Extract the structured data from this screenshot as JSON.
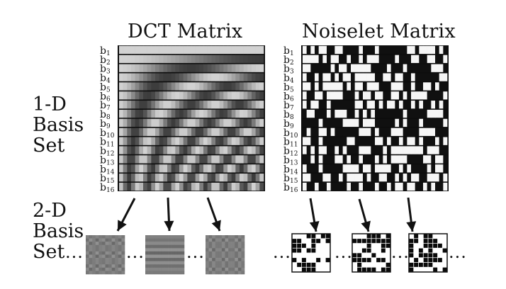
{
  "titles": {
    "dct": "DCT Matrix",
    "noiselet": "Noiselet Matrix"
  },
  "labels": {
    "one_d": [
      "1-D",
      "Basis",
      "Set"
    ],
    "two_d": [
      "2-D",
      "Basis",
      "Set"
    ]
  },
  "basis_labels": [
    "b1",
    "b2",
    "b3",
    "b4",
    "b5",
    "b6",
    "b7",
    "b8",
    "b9",
    "b10",
    "b11",
    "b12",
    "b13",
    "b14",
    "b15",
    "b16"
  ],
  "ellipsis": "...",
  "colors": {
    "ink": "#111111",
    "dct_mid": "#8a8a8a",
    "noise_dark": "#0a0a0a",
    "noise_light": "#ffffff"
  }
}
